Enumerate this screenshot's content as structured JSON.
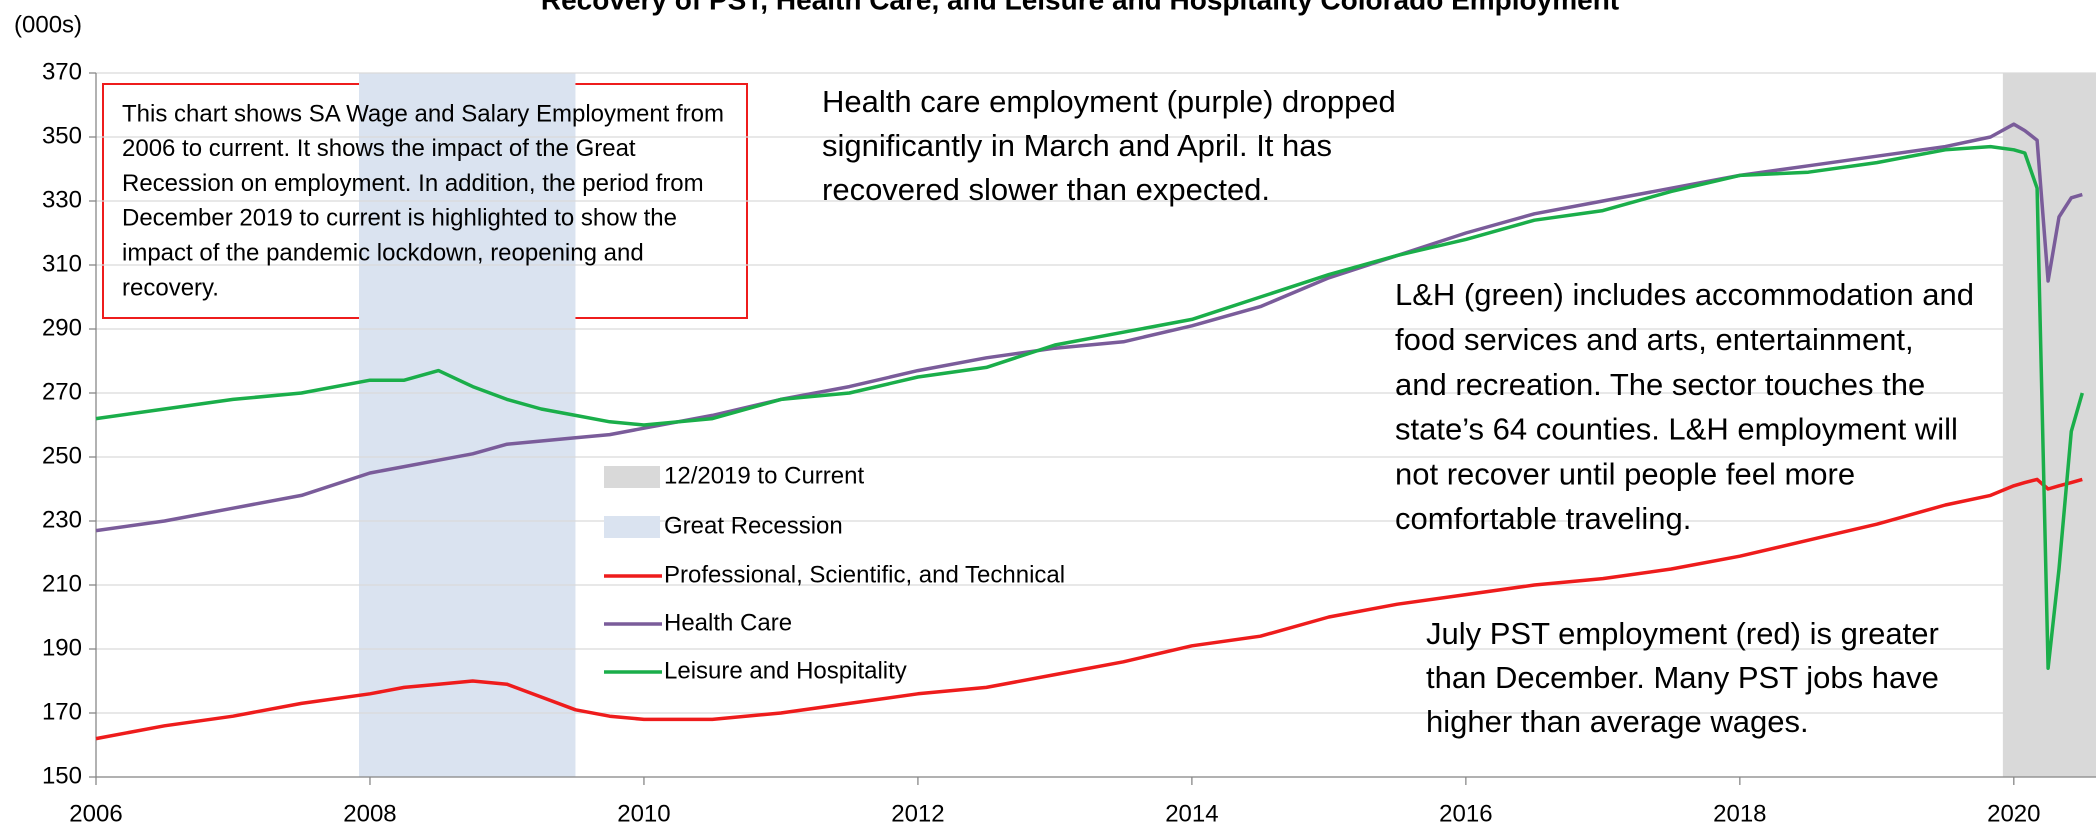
{
  "chart_data": {
    "type": "line",
    "title": "Recovery of PST, Health Care, and Leisure and Hospitality Colorado Employment",
    "y_label": "(000s)",
    "xlim": [
      2006,
      2020.6
    ],
    "xticks": [
      2006,
      2008,
      2010,
      2012,
      2014,
      2016,
      2018,
      2020
    ],
    "ylim": [
      150,
      370
    ],
    "yticks": [
      150,
      170,
      190,
      210,
      230,
      250,
      270,
      290,
      310,
      330,
      350,
      370
    ],
    "grid": true,
    "x": [
      2006.0,
      2006.5,
      2007.0,
      2007.5,
      2008.0,
      2008.25,
      2008.5,
      2008.75,
      2009.0,
      2009.25,
      2009.5,
      2009.75,
      2010.0,
      2010.5,
      2011.0,
      2011.5,
      2012.0,
      2012.5,
      2013.0,
      2013.5,
      2014.0,
      2014.5,
      2015.0,
      2015.5,
      2016.0,
      2016.5,
      2017.0,
      2017.5,
      2018.0,
      2018.5,
      2019.0,
      2019.5,
      2019.83,
      2020.0,
      2020.08,
      2020.17,
      2020.25,
      2020.33,
      2020.42,
      2020.5
    ],
    "shaded_regions": [
      {
        "name": "12/2019 to Current",
        "color": "#d9d9d9",
        "start": 2019.92,
        "end": 2020.6
      },
      {
        "name": "Great Recession",
        "color": "#dae3f0",
        "start": 2007.92,
        "end": 2009.5
      }
    ],
    "series": [
      {
        "name": "Professional, Scientific, and Technical",
        "color": "#ee1c1c",
        "values": [
          162,
          166,
          169,
          173,
          176,
          178,
          179,
          180,
          179,
          175,
          171,
          169,
          168,
          168,
          170,
          173,
          176,
          178,
          182,
          186,
          191,
          194,
          200,
          204,
          207,
          210,
          212,
          215,
          219,
          224,
          229,
          235,
          238,
          241,
          242,
          243,
          240,
          241,
          242,
          243
        ]
      },
      {
        "name": "Health Care",
        "color": "#7a5c9a",
        "values": [
          227,
          230,
          234,
          238,
          245,
          247,
          249,
          251,
          254,
          255,
          256,
          257,
          259,
          263,
          268,
          272,
          277,
          281,
          284,
          286,
          291,
          297,
          306,
          313,
          320,
          326,
          330,
          334,
          338,
          341,
          344,
          347,
          350,
          354,
          352,
          349,
          305,
          325,
          331,
          332
        ]
      },
      {
        "name": "Leisure and Hospitality",
        "color": "#1aae4a",
        "values": [
          262,
          265,
          268,
          270,
          274,
          274,
          277,
          272,
          268,
          265,
          263,
          261,
          260,
          262,
          268,
          270,
          275,
          278,
          285,
          289,
          293,
          300,
          307,
          313,
          318,
          324,
          327,
          333,
          338,
          339,
          342,
          346,
          347,
          346,
          345,
          334,
          184,
          215,
          258,
          270
        ]
      }
    ],
    "annotations": [
      {
        "lines": [
          "This chart shows SA Wage and Salary Employment from",
          "2006 to current. It shows the impact of the Great",
          "Recession on employment. In addition, the period from",
          "December 2019 to current is highlighted to show the",
          "impact of the pandemic lockdown, reopening and",
          "recovery."
        ]
      },
      {
        "lines": [
          "Health care employment (purple) dropped",
          "significantly in March and April. It has",
          "recovered slower than expected."
        ]
      },
      {
        "lines": [
          "L&H (green) includes accommodation and",
          "food services and arts, entertainment,",
          "and recreation. The sector touches the",
          "state’s 64 counties. L&H employment will",
          "not recover until people feel more",
          "comfortable traveling."
        ]
      },
      {
        "lines": [
          "July PST employment (red) is greater",
          "than December. Many PST jobs have",
          "higher than average wages."
        ]
      }
    ]
  }
}
